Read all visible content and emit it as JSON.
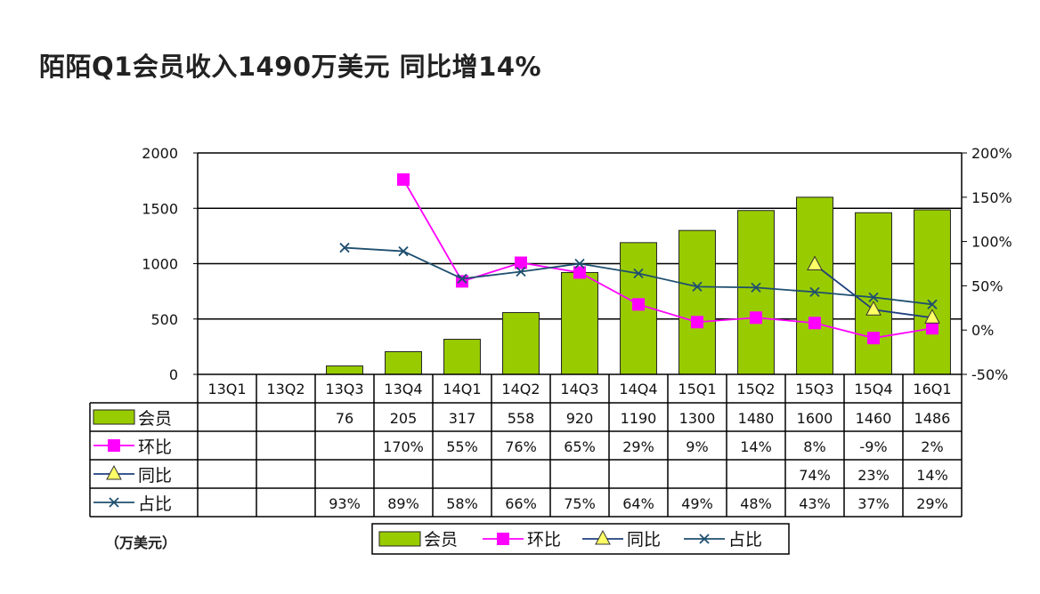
{
  "title": "陌陌Q1会员收入1490万美元 同比增14%",
  "unit_label": "（万美元）",
  "colors": {
    "bar": "#99cc00",
    "qoq": "#ff00ff",
    "yoy": "#1f3f7f",
    "share": "#1f4f6f"
  },
  "chart_data": {
    "type": "bar",
    "categories": [
      "13Q1",
      "13Q2",
      "13Q3",
      "13Q4",
      "14Q1",
      "14Q2",
      "14Q3",
      "14Q4",
      "15Q1",
      "15Q2",
      "15Q3",
      "15Q4",
      "16Q1"
    ],
    "ylim": [
      0,
      2000
    ],
    "y_ticks": [
      "0",
      "500",
      "1000",
      "1500",
      "2000"
    ],
    "y2lim": [
      -50,
      200
    ],
    "y2_ticks": [
      "-50%",
      "0%",
      "50%",
      "100%",
      "150%",
      "200%"
    ],
    "grid": true,
    "series": [
      {
        "name": "会员",
        "kind": "bar",
        "values": [
          null,
          null,
          76,
          205,
          317,
          558,
          920,
          1190,
          1300,
          1480,
          1600,
          1460,
          1486
        ],
        "labels": [
          "",
          "",
          "76",
          "205",
          "317",
          "558",
          "920",
          "1190",
          "1300",
          "1480",
          "1600",
          "1460",
          "1486"
        ]
      },
      {
        "name": "环比",
        "kind": "line",
        "marker": "square",
        "values": [
          null,
          null,
          null,
          170,
          55,
          76,
          65,
          29,
          9,
          14,
          8,
          -9,
          2
        ],
        "labels": [
          "",
          "",
          "",
          "170%",
          "55%",
          "76%",
          "65%",
          "29%",
          "9%",
          "14%",
          "8%",
          "-9%",
          "2%"
        ]
      },
      {
        "name": "同比",
        "kind": "line",
        "marker": "triangle",
        "values": [
          null,
          null,
          null,
          null,
          null,
          null,
          null,
          null,
          null,
          null,
          74,
          23,
          14
        ],
        "labels": [
          "",
          "",
          "",
          "",
          "",
          "",
          "",
          "",
          "",
          "",
          "74%",
          "23%",
          "14%"
        ]
      },
      {
        "name": "占比",
        "kind": "line",
        "marker": "x",
        "values": [
          null,
          null,
          93,
          89,
          58,
          66,
          75,
          64,
          49,
          48,
          43,
          37,
          29
        ],
        "labels": [
          "",
          "",
          "93%",
          "89%",
          "58%",
          "66%",
          "75%",
          "64%",
          "49%",
          "48%",
          "43%",
          "37%",
          "29%"
        ]
      }
    ],
    "legend": [
      "会员",
      "环比",
      "同比",
      "占比"
    ],
    "legend_position": "bottom"
  }
}
